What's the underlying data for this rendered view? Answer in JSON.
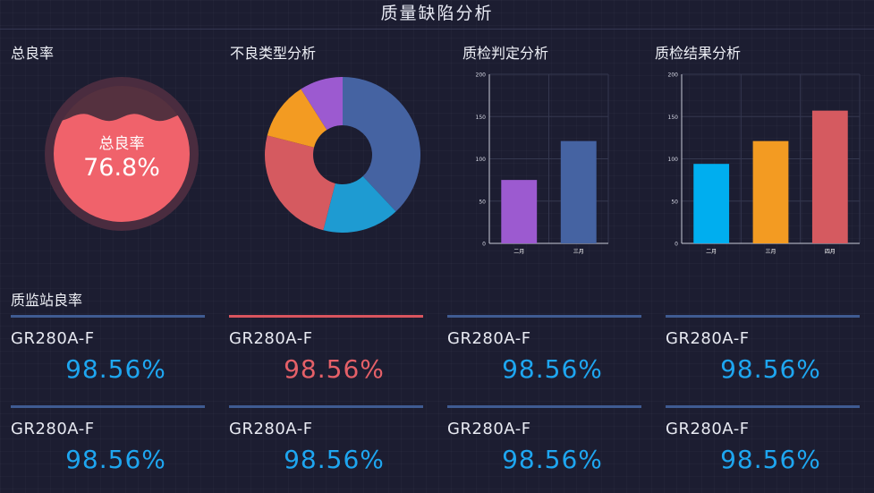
{
  "page": {
    "title": "质量缺陷分析"
  },
  "yield_panel": {
    "title": "总良率",
    "gauge_label": "总良率",
    "gauge_value": "76.8%",
    "fraction": 0.768
  },
  "defect_panel": {
    "title": "不良类型分析",
    "chart_data": {
      "type": "pie",
      "slices": [
        {
          "value": 38,
          "color": "#4563a2"
        },
        {
          "value": 16,
          "color": "#1e9bd2"
        },
        {
          "value": 25,
          "color": "#d55a60"
        },
        {
          "value": 12,
          "color": "#f39b22"
        },
        {
          "value": 9,
          "color": "#9c5ad0"
        }
      ]
    }
  },
  "judgement_panel": {
    "title": "质检判定分析",
    "chart_data": {
      "type": "bar",
      "categories": [
        "二月",
        "三月"
      ],
      "values": [
        75,
        121
      ],
      "colors": [
        "#9c5ad0",
        "#4563a2"
      ],
      "ylim": [
        0,
        200
      ],
      "yticks": [
        "0",
        "50",
        "100",
        "150",
        "200"
      ],
      "grid": true
    }
  },
  "result_panel": {
    "title": "质检结果分析",
    "chart_data": {
      "type": "bar",
      "categories": [
        "二月",
        "三月",
        "四月"
      ],
      "values": [
        94,
        121,
        157
      ],
      "colors": [
        "#00aeef",
        "#f39b22",
        "#d55a60"
      ],
      "ylim": [
        0,
        200
      ],
      "yticks": [
        "0",
        "50",
        "100",
        "150",
        "200"
      ],
      "grid": true
    }
  },
  "stations": {
    "title": "质监站良率",
    "cards": [
      {
        "name": "GR280A-F",
        "rate": "98.56%",
        "alert": false
      },
      {
        "name": "GR280A-F",
        "rate": "98.56%",
        "alert": true
      },
      {
        "name": "GR280A-F",
        "rate": "98.56%",
        "alert": false
      },
      {
        "name": "GR280A-F",
        "rate": "98.56%",
        "alert": false
      },
      {
        "name": "GR280A-F",
        "rate": "98.56%",
        "alert": false
      },
      {
        "name": "GR280A-F",
        "rate": "98.56%",
        "alert": false
      },
      {
        "name": "GR280A-F",
        "rate": "98.56%",
        "alert": false
      },
      {
        "name": "GR280A-F",
        "rate": "98.56%",
        "alert": false
      }
    ]
  },
  "colors": {
    "background": "#1c1d31",
    "accent_blue": "#1ea6f0",
    "alert_red": "#e56068",
    "gauge_fill": "#f0626b"
  }
}
